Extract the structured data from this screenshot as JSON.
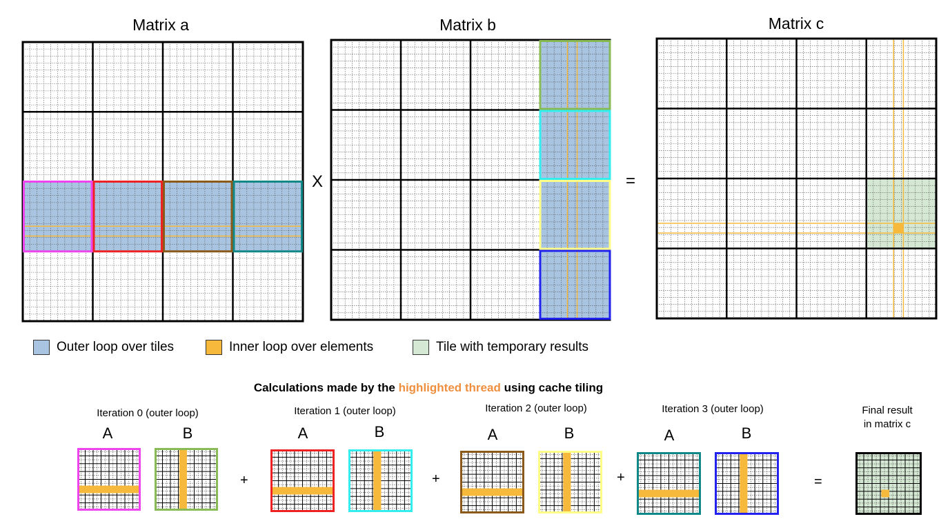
{
  "matrices": {
    "a_title": "Matrix a",
    "b_title": "Matrix b",
    "c_title": "Matrix c",
    "times_symbol": "X",
    "equals_symbol": "="
  },
  "legend": {
    "outer": "Outer loop over tiles",
    "inner": "Inner loop over elements",
    "temp": "Tile with temporary results"
  },
  "calc": {
    "title_before": "Calculations made by the ",
    "title_highlight": "highlighted thread",
    "title_after": " using cache tiling",
    "iterations": [
      {
        "label": "Iteration 0 (outer loop)",
        "a": "A",
        "b": "B"
      },
      {
        "label": "Iteration 1 (outer loop)",
        "a": "A",
        "b": "B"
      },
      {
        "label": "Iteration 2 (outer loop)",
        "a": "A",
        "b": "B"
      },
      {
        "label": "Iteration 3 (outer loop)",
        "a": "A",
        "b": "B"
      }
    ],
    "plus_symbol": "+",
    "equals_symbol": "=",
    "final_line1": "Final result",
    "final_line2": "in matrix c"
  },
  "colors": {
    "tile_fill": "#a8c4e0",
    "element_highlight": "#f6b93b",
    "temp_fill": "#d5e8d4",
    "iter_colors": [
      {
        "a": "#ee44ee",
        "b": "#88bb55"
      },
      {
        "a": "#ee2222",
        "b": "#33eeee"
      },
      {
        "a": "#8b5a1b",
        "b": "#ffff88"
      },
      {
        "a": "#118888",
        "b": "#2222ee"
      }
    ]
  }
}
